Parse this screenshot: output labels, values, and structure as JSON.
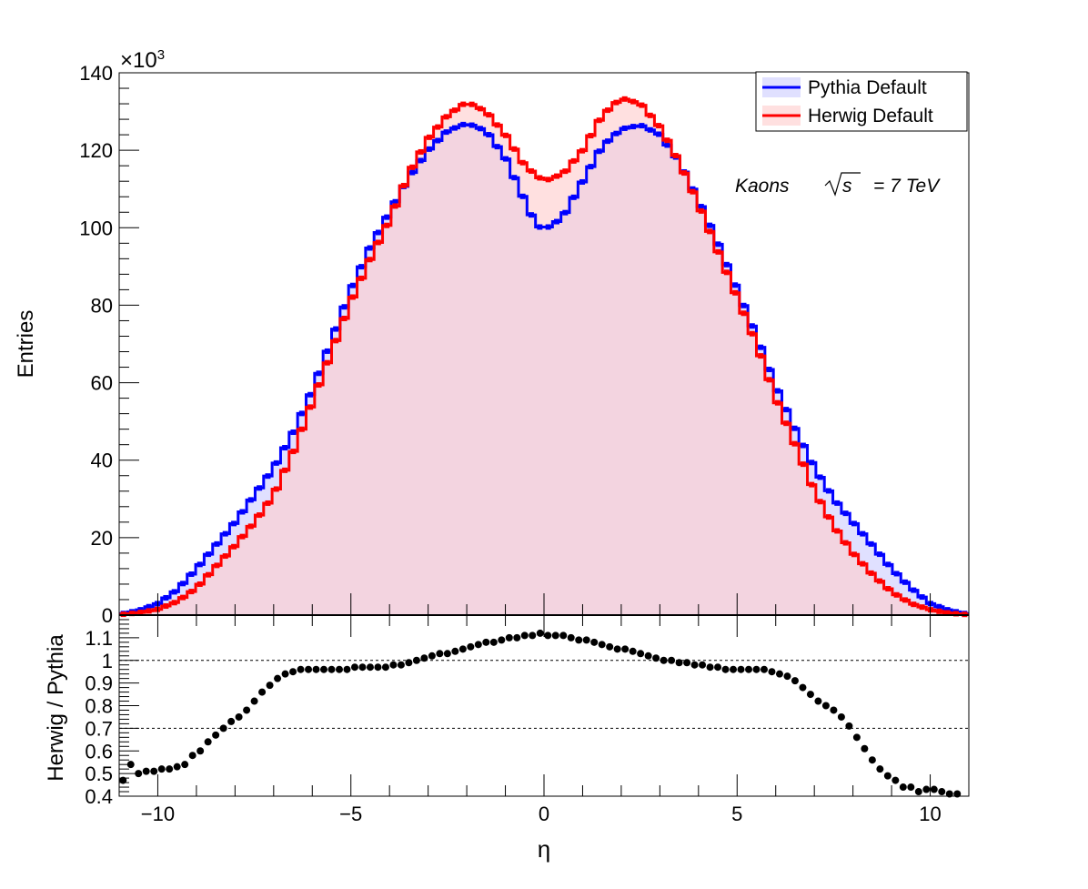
{
  "chart_data": [
    {
      "type": "histogram",
      "title": "",
      "xlabel": "",
      "ylabel": "Entries",
      "y_multiplier_label": "×10",
      "y_multiplier_exp": "3",
      "xlim": [
        -11,
        11
      ],
      "ylim": [
        0,
        140
      ],
      "y_unit": "thousands",
      "xticks": [
        -10,
        -5,
        0,
        5,
        10
      ],
      "yticks": [
        0,
        20,
        40,
        60,
        80,
        100,
        120,
        140
      ],
      "annotation": {
        "text": "Kaons",
        "sqrt_label": "s",
        "energy": "= 7 TeV"
      },
      "legend_position": "top-right",
      "series": [
        {
          "name": "Pythia Default",
          "color": "#0000ff",
          "fill": "#ccccff",
          "profile": {
            "points": [
              [
                -11,
                0.2
              ],
              [
                -10.5,
                1.2
              ],
              [
                -10,
                3
              ],
              [
                -9.5,
                6.5
              ],
              [
                -9,
                12
              ],
              [
                -8.5,
                18
              ],
              [
                -8,
                24
              ],
              [
                -7.5,
                31
              ],
              [
                -7,
                38
              ],
              [
                -6.5,
                47
              ],
              [
                -6,
                58
              ],
              [
                -5.5,
                71
              ],
              [
                -5,
                84
              ],
              [
                -4.5,
                95
              ],
              [
                -4,
                104
              ],
              [
                -3.5,
                113
              ],
              [
                -3,
                120
              ],
              [
                -2.5,
                125
              ],
              [
                -2,
                127
              ],
              [
                -1.5,
                125
              ],
              [
                -1,
                118
              ],
              [
                -0.5,
                107
              ],
              [
                -0.2,
                100.5
              ],
              [
                0,
                99.8
              ],
              [
                0.2,
                100.5
              ],
              [
                0.5,
                103
              ],
              [
                1,
                112
              ],
              [
                1.5,
                121
              ],
              [
                2,
                125.5
              ],
              [
                2.5,
                126.5
              ],
              [
                3,
                124
              ],
              [
                3.5,
                117
              ],
              [
                4,
                107
              ],
              [
                4.5,
                96
              ],
              [
                5,
                84
              ],
              [
                5.5,
                72
              ],
              [
                6,
                59
              ],
              [
                6.5,
                48
              ],
              [
                7,
                38
              ],
              [
                7.5,
                30
              ],
              [
                8,
                24
              ],
              [
                8.5,
                18
              ],
              [
                9,
                12
              ],
              [
                9.5,
                7
              ],
              [
                10,
                3
              ],
              [
                10.5,
                1.2
              ],
              [
                11,
                0.2
              ]
            ]
          }
        },
        {
          "name": "Herwig Default",
          "color": "#ff0000",
          "fill": "#ffcccc",
          "profile": {
            "points": [
              [
                -11,
                0.1
              ],
              [
                -10.5,
                0.6
              ],
              [
                -10,
                1.5
              ],
              [
                -9.5,
                3.5
              ],
              [
                -9,
                7
              ],
              [
                -8.5,
                12.5
              ],
              [
                -8,
                18
              ],
              [
                -7.5,
                24
              ],
              [
                -7,
                31
              ],
              [
                -6.5,
                42
              ],
              [
                -6,
                55
              ],
              [
                -5.5,
                68
              ],
              [
                -5,
                81
              ],
              [
                -4.5,
                92
              ],
              [
                -4,
                102
              ],
              [
                -3.5,
                114
              ],
              [
                -3,
                123
              ],
              [
                -2.5,
                129
              ],
              [
                -2,
                132.5
              ],
              [
                -1.5,
                130
              ],
              [
                -1,
                124
              ],
              [
                -0.5,
                116
              ],
              [
                0,
                112
              ],
              [
                0.5,
                114
              ],
              [
                1,
                120
              ],
              [
                1.5,
                129
              ],
              [
                2,
                133.5
              ],
              [
                2.5,
                132
              ],
              [
                3,
                126
              ],
              [
                3.5,
                117
              ],
              [
                4,
                106
              ],
              [
                4.5,
                94
              ],
              [
                5,
                82
              ],
              [
                5.5,
                70
              ],
              [
                6,
                56
              ],
              [
                6.5,
                44
              ],
              [
                7,
                32
              ],
              [
                7.5,
                23
              ],
              [
                8,
                16
              ],
              [
                8.5,
                10.5
              ],
              [
                9,
                6
              ],
              [
                9.5,
                3
              ],
              [
                10,
                1.4
              ],
              [
                10.5,
                0.5
              ],
              [
                11,
                0.1
              ]
            ]
          }
        }
      ]
    },
    {
      "type": "scatter",
      "title": "",
      "xlabel": "η",
      "ylabel": "Herwig / Pythia",
      "xlim": [
        -11,
        11
      ],
      "ylim": [
        0.4,
        1.2
      ],
      "xticks": [
        -10,
        -5,
        0,
        5,
        10
      ],
      "yticks": [
        0.4,
        0.5,
        0.6,
        0.7,
        0.8,
        0.9,
        1,
        1.1
      ],
      "reference_lines": [
        1.0,
        0.7
      ],
      "color": "#000000",
      "x": [
        -10.9,
        -10.7,
        -10.5,
        -10.3,
        -10.1,
        -9.9,
        -9.7,
        -9.5,
        -9.3,
        -9.1,
        -8.9,
        -8.7,
        -8.5,
        -8.3,
        -8.1,
        -7.9,
        -7.7,
        -7.5,
        -7.3,
        -7.1,
        -6.9,
        -6.7,
        -6.5,
        -6.3,
        -6.1,
        -5.9,
        -5.7,
        -5.5,
        -5.3,
        -5.1,
        -4.9,
        -4.7,
        -4.5,
        -4.3,
        -4.1,
        -3.9,
        -3.7,
        -3.5,
        -3.3,
        -3.1,
        -2.9,
        -2.7,
        -2.5,
        -2.3,
        -2.1,
        -1.9,
        -1.7,
        -1.5,
        -1.3,
        -1.1,
        -0.9,
        -0.7,
        -0.5,
        -0.3,
        -0.1,
        0.1,
        0.3,
        0.5,
        0.7,
        0.9,
        1.1,
        1.3,
        1.5,
        1.7,
        1.9,
        2.1,
        2.3,
        2.5,
        2.7,
        2.9,
        3.1,
        3.3,
        3.5,
        3.7,
        3.9,
        4.1,
        4.3,
        4.5,
        4.7,
        4.9,
        5.1,
        5.3,
        5.5,
        5.7,
        5.9,
        6.1,
        6.3,
        6.5,
        6.7,
        6.9,
        7.1,
        7.3,
        7.5,
        7.7,
        7.9,
        8.1,
        8.3,
        8.5,
        8.7,
        8.9,
        9.1,
        9.3,
        9.5,
        9.7,
        9.9,
        10.1,
        10.3,
        10.5,
        10.7
      ],
      "values": [
        0.47,
        0.54,
        0.5,
        0.51,
        0.51,
        0.52,
        0.52,
        0.53,
        0.54,
        0.58,
        0.6,
        0.64,
        0.67,
        0.7,
        0.73,
        0.75,
        0.78,
        0.82,
        0.86,
        0.89,
        0.92,
        0.94,
        0.95,
        0.96,
        0.96,
        0.96,
        0.96,
        0.96,
        0.96,
        0.96,
        0.97,
        0.97,
        0.97,
        0.97,
        0.97,
        0.98,
        0.98,
        0.99,
        1.0,
        1.01,
        1.02,
        1.03,
        1.03,
        1.04,
        1.05,
        1.06,
        1.07,
        1.08,
        1.08,
        1.09,
        1.1,
        1.1,
        1.11,
        1.11,
        1.12,
        1.11,
        1.11,
        1.11,
        1.1,
        1.09,
        1.09,
        1.08,
        1.07,
        1.06,
        1.05,
        1.05,
        1.04,
        1.03,
        1.02,
        1.01,
        1.0,
        1.0,
        0.99,
        0.99,
        0.98,
        0.98,
        0.97,
        0.97,
        0.96,
        0.96,
        0.96,
        0.96,
        0.96,
        0.96,
        0.95,
        0.94,
        0.93,
        0.91,
        0.88,
        0.85,
        0.82,
        0.8,
        0.78,
        0.75,
        0.71,
        0.66,
        0.61,
        0.56,
        0.52,
        0.49,
        0.47,
        0.44,
        0.44,
        0.42,
        0.43,
        0.43,
        0.42,
        0.41,
        0.41
      ]
    }
  ]
}
